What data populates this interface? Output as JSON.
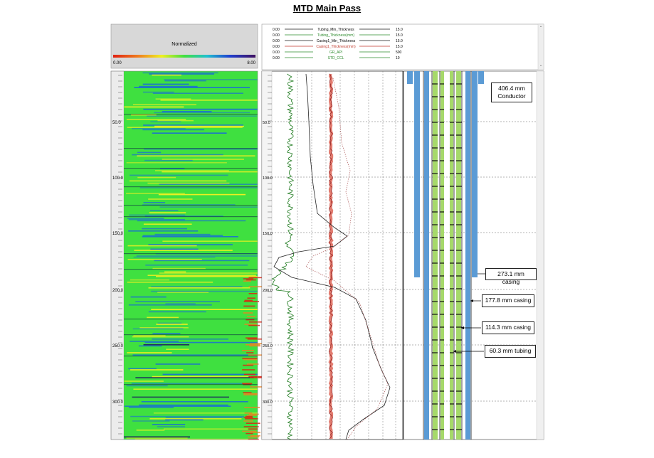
{
  "title": "MTD Main Pass",
  "left_track": {
    "scale_label": "Normalized",
    "scale_min": "0.00",
    "scale_max": "8.00",
    "depth_labels": [
      "50.0",
      "100.0",
      "150.0",
      "200.0",
      "250.0",
      "300.0"
    ]
  },
  "mid_track": {
    "depth_labels": [
      "50.0",
      "100.0",
      "150.0",
      "200.0",
      "250.0",
      "300.0"
    ]
  },
  "header_curves": [
    {
      "left": "0.00",
      "name": "Tubing_Min_Thickness",
      "right": "15.0",
      "color": "#1a1a1a"
    },
    {
      "left": "0.00",
      "name": "Tubing_Thickness(mm)",
      "right": "15.0",
      "color": "#2e8b2e"
    },
    {
      "left": "0.00",
      "name": "Casing1_Min_Thickness",
      "right": "15.0",
      "color": "#1a1a1a"
    },
    {
      "left": "0.00",
      "name": "Casing1_Thickness(mm)",
      "right": "15.0",
      "color": "#c0392b"
    },
    {
      "left": "0.00",
      "name": "GR_API",
      "right": "500",
      "color": "#2e8b2e"
    },
    {
      "left": "0.00",
      "name": "STD_CCL",
      "right": "10",
      "color": "#2e8b2e"
    }
  ],
  "annotations": [
    {
      "id": "conductor",
      "text": "406.4 mm Conductor"
    },
    {
      "id": "casing273",
      "text": "273.1 mm casing"
    },
    {
      "id": "casing178",
      "text": "177.8 mm casing"
    },
    {
      "id": "casing114",
      "text": "114.3 mm casing"
    },
    {
      "id": "tubing60",
      "text": "60.3 mm tubing"
    }
  ],
  "colors": {
    "heatmap_green": "#3fe040",
    "heatmap_yellow": "#f0f020",
    "heatmap_blue": "#1a70d0",
    "heatmap_red": "#e02010",
    "casing_blue": "#5b9bd5",
    "tubing_green": "#a6d96a",
    "gr_green": "#1e7a1e",
    "ccl_red": "#d85040"
  }
}
